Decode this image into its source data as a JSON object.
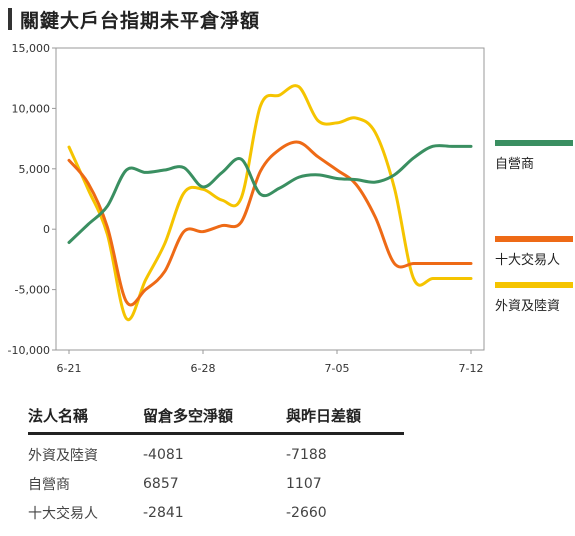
{
  "title": "關鍵大戶台指期未平倉淨額",
  "chart_data": {
    "type": "line",
    "x": [
      "6-21",
      "6-22",
      "6-23",
      "6-24",
      "6-25",
      "6-26",
      "6-27",
      "6-28",
      "6-29",
      "6-30",
      "7-01",
      "7-02",
      "7-03",
      "7-04",
      "7-05",
      "7-06",
      "7-07",
      "7-08",
      "7-09",
      "7-10",
      "7-11",
      "7-12"
    ],
    "x_tick_labels": [
      "6-21",
      "6-28",
      "7-05",
      "7-12"
    ],
    "y_tick_labels": [
      "15,000",
      "10,000",
      "5,000",
      "0",
      "-5,000",
      "-10,000"
    ],
    "ylim": [
      -10000,
      15000
    ],
    "y_ticks": [
      15000,
      10000,
      5000,
      0,
      -5000,
      -10000
    ],
    "grid": false,
    "legend_position": "right",
    "series": [
      {
        "name": "自營商",
        "color": "#3a8f61",
        "values": [
          -1100,
          400,
          1900,
          4900,
          4700,
          4900,
          5100,
          3500,
          4700,
          5800,
          2900,
          3400,
          4300,
          4500,
          4200,
          4100,
          3900,
          4500,
          5900,
          6857,
          6857,
          6857
        ]
      },
      {
        "name": "十大交易人",
        "color": "#ee6a16",
        "values": [
          5700,
          3800,
          200,
          -6000,
          -5000,
          -3500,
          -200,
          -200,
          300,
          600,
          4800,
          6600,
          7200,
          6000,
          4900,
          3700,
          1000,
          -2841,
          -2841,
          -2841,
          -2841,
          -2841
        ]
      },
      {
        "name": "外資及陸資",
        "color": "#f5c400",
        "values": [
          6800,
          3300,
          -400,
          -7400,
          -4200,
          -1200,
          3000,
          3300,
          2400,
          2600,
          10200,
          11100,
          11800,
          9000,
          8800,
          9200,
          8000,
          3400,
          -4081,
          -4081,
          -4081,
          -4081
        ]
      }
    ]
  },
  "summary": {
    "headers": [
      "法人名稱",
      "留倉多空淨額",
      "與昨日差額"
    ],
    "rows": [
      {
        "name": "外資及陸資",
        "net": "-4081",
        "diff": "-7188"
      },
      {
        "name": "自營商",
        "net": "6857",
        "diff": "1107"
      },
      {
        "name": "十大交易人",
        "net": "-2841",
        "diff": "-2660"
      }
    ]
  }
}
